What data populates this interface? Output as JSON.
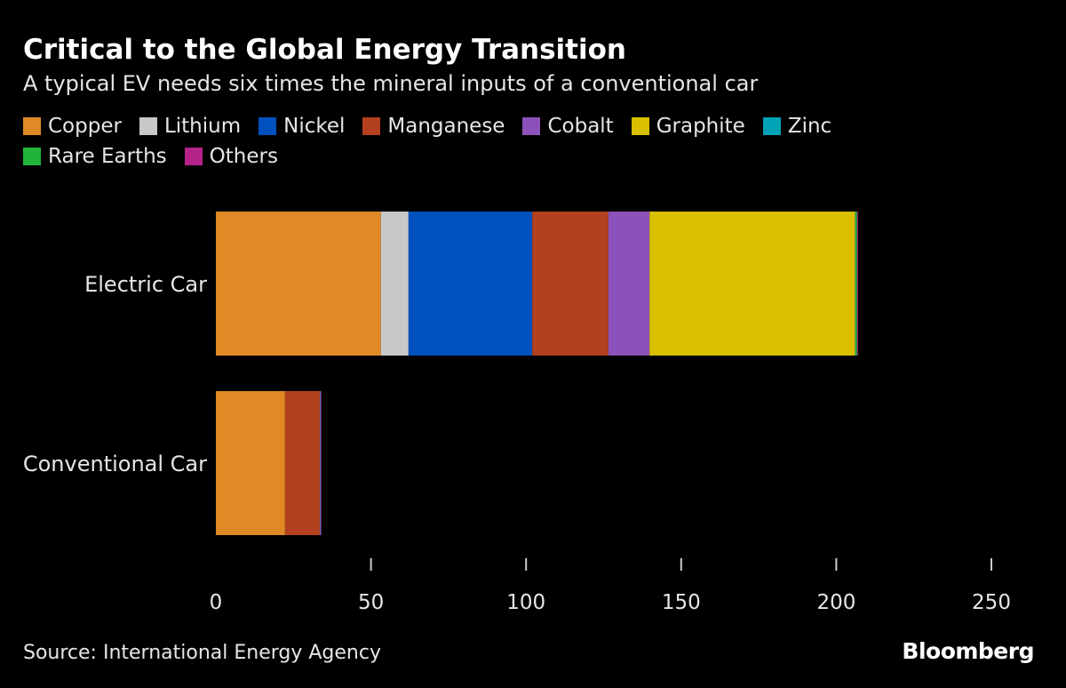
{
  "chart_data": {
    "type": "bar",
    "orientation": "horizontal",
    "stacked": true,
    "title": "Critical to the Global Energy Transition",
    "subtitle": "A typical EV needs six times the mineral inputs of a conventional car",
    "categories": [
      "Electric Car",
      "Conventional Car"
    ],
    "series": [
      {
        "name": "Copper",
        "color": "#df8a25",
        "values": [
          53.2,
          22.3
        ]
      },
      {
        "name": "Lithium",
        "color": "#c8c8c8",
        "values": [
          8.9,
          0
        ]
      },
      {
        "name": "Nickel",
        "color": "#0051bd",
        "values": [
          39.9,
          0
        ]
      },
      {
        "name": "Manganese",
        "color": "#b3401f",
        "values": [
          24.5,
          11.2
        ]
      },
      {
        "name": "Cobalt",
        "color": "#8d52b9",
        "values": [
          13.3,
          0
        ]
      },
      {
        "name": "Graphite",
        "color": "#d8bf00",
        "values": [
          66.3,
          0
        ]
      },
      {
        "name": "Zinc",
        "color": "#00a3b5",
        "values": [
          0.1,
          0.2
        ]
      },
      {
        "name": "Rare Earths",
        "color": "#20b53a",
        "values": [
          0.5,
          0
        ]
      },
      {
        "name": "Others",
        "color": "#b5228a",
        "values": [
          0.3,
          0.3
        ]
      }
    ],
    "xlim": [
      0,
      250
    ],
    "xticks": [
      "0",
      "50",
      "100",
      "150",
      "200",
      "250"
    ],
    "grid": false,
    "legend": "top"
  },
  "source": "Source: International Energy Agency",
  "logo": "Bloomberg"
}
